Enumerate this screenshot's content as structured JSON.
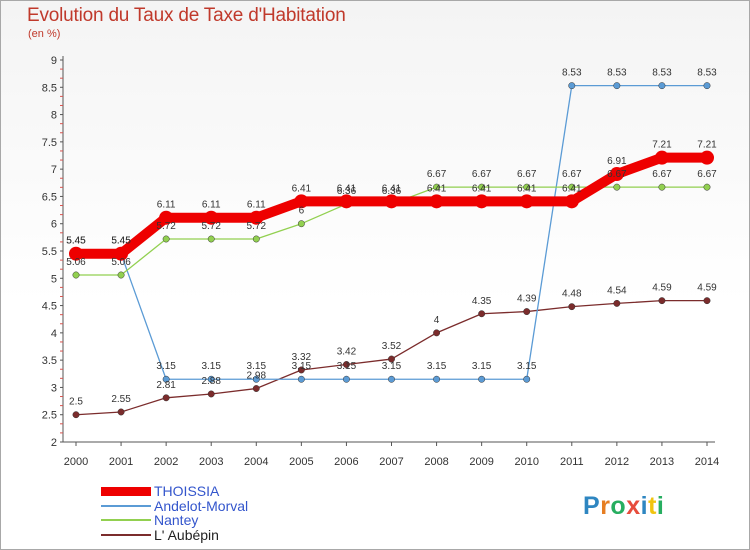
{
  "title": "Evolution du Taux de Taxe d'Habitation",
  "subtitle": "(en %)",
  "logo": {
    "letters": [
      "P",
      "r",
      "o",
      "x",
      "i",
      "t",
      "i"
    ],
    "colors": [
      "#2e86c1",
      "#e67e22",
      "#27ae60",
      "#e74c3c",
      "#2e86c1",
      "#f1c40f",
      "#27ae60"
    ]
  },
  "chart_data": {
    "type": "line",
    "x": [
      "2000",
      "2001",
      "2002",
      "2003",
      "2004",
      "2005",
      "2006",
      "2007",
      "2008",
      "2009",
      "2010",
      "2011",
      "2012",
      "2013",
      "2014"
    ],
    "y_ticks": [
      "2",
      "2.5",
      "3",
      "3.5",
      "4",
      "4.5",
      "5",
      "5.5",
      "6",
      "6.5",
      "7",
      "7.5",
      "8",
      "8.5",
      "9"
    ],
    "ylim": [
      2,
      9
    ],
    "grid": false,
    "legend_position": "bottom-left",
    "series": [
      {
        "name": "THOISSIA",
        "color": "#ee0000",
        "values": [
          5.45,
          5.45,
          6.11,
          6.11,
          6.11,
          6.41,
          6.41,
          6.41,
          6.41,
          6.41,
          6.41,
          6.41,
          6.91,
          7.21,
          7.21
        ],
        "labels": [
          "5.45",
          "5.45",
          "6.11",
          "6.11",
          "6.11",
          "6.41",
          "6.41",
          "6.41",
          "6.41",
          "6.41",
          "6.41",
          "6.41",
          "6.91",
          "7.21",
          "7.21"
        ]
      },
      {
        "name": "Andelot-Morval",
        "color": "#5b9bd5",
        "values": [
          5.45,
          5.45,
          3.15,
          3.15,
          3.15,
          3.15,
          3.15,
          3.15,
          3.15,
          3.15,
          3.15,
          8.53,
          8.53,
          8.53,
          8.53
        ],
        "labels": [
          "5.45",
          "5.45",
          "3.15",
          "3.15",
          "3.15",
          "3.15",
          "3.15",
          "3.15",
          "3.15",
          "3.15",
          "3.15",
          "8.53",
          "8.53",
          "8.53",
          "8.53"
        ]
      },
      {
        "name": "Nantey",
        "color": "#92d050",
        "values": [
          5.06,
          5.06,
          5.72,
          5.72,
          5.72,
          6,
          6.36,
          6.36,
          6.67,
          6.67,
          6.67,
          6.67,
          6.67,
          6.67,
          6.67
        ],
        "labels": [
          "5.06",
          "5.06",
          "5.72",
          "5.72",
          "5.72",
          "6",
          "6.36",
          "6.36",
          "6.67",
          "6.67",
          "6.67",
          "6.67",
          "6.67",
          "6.67",
          "6.67"
        ]
      },
      {
        "name": "L' Aubépin",
        "color": "#7b2c2c",
        "values": [
          2.5,
          2.55,
          2.81,
          2.88,
          2.98,
          3.32,
          3.42,
          3.52,
          4,
          4.35,
          4.39,
          4.48,
          4.54,
          4.59,
          4.59
        ],
        "labels": [
          "2.5",
          "2.55",
          "2.81",
          "2.88",
          "2.98",
          "3.32",
          "3.42",
          "3.52",
          "4",
          "4.35",
          "4.39",
          "4.48",
          "4.54",
          "4.59",
          "4.59"
        ]
      }
    ]
  }
}
